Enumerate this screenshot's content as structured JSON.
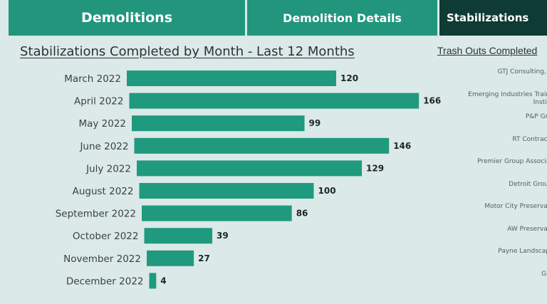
{
  "tabs": [
    {
      "label": "Demolitions"
    },
    {
      "label": "Demolition Details"
    },
    {
      "label": "Stabilizations"
    }
  ],
  "colors": {
    "bar": "#1f9a7e",
    "tab": "#21967c",
    "active_tab": "#0f3b35",
    "background": "#dbe9e8"
  },
  "chart_data": {
    "type": "bar",
    "orientation": "horizontal",
    "title": "Stabilizations Completed by Month - Last 12 Months",
    "categories": [
      "March 2022",
      "April 2022",
      "May 2022",
      "June 2022",
      "July 2022",
      "August 2022",
      "September 2022",
      "October 2022",
      "November 2022",
      "December 2022"
    ],
    "values": [
      120,
      166,
      99,
      146,
      129,
      100,
      86,
      39,
      27,
      4
    ],
    "data_labels": true,
    "grid": false
  },
  "right_panel": {
    "title": "Trash Outs Completed",
    "vendors": [
      "GTJ Consulting, LLC",
      "Emerging Industries Training Institute",
      "P&P Group",
      "RT Contracting",
      "Premier Group Associates",
      "Detroit Grounds",
      "Motor City Preservation",
      "AW Preservation",
      "Payne Landscaping",
      "Gayle"
    ]
  }
}
